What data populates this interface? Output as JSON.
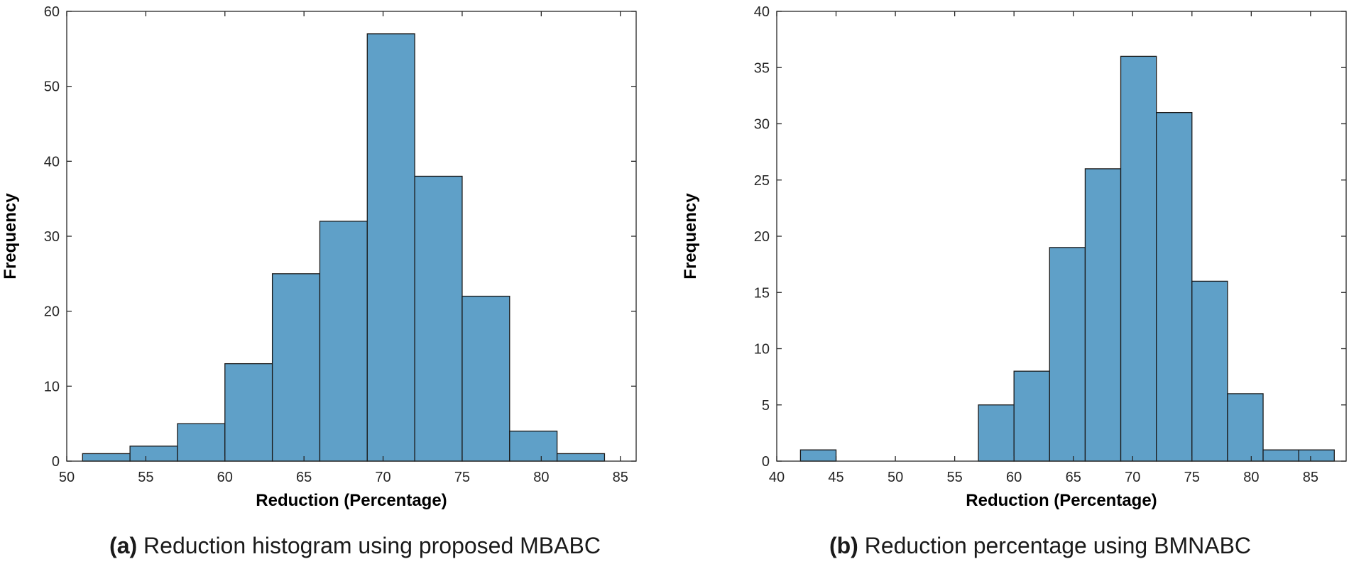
{
  "chart_data": [
    {
      "type": "bar",
      "subtype": "histogram",
      "caption_label": "(a)",
      "caption_text": "Reduction histogram using proposed MBABC",
      "xlabel": "Reduction (Percentage)",
      "ylabel": "Frequency",
      "xlim": [
        50,
        86
      ],
      "ylim": [
        0,
        60
      ],
      "xticks": [
        50,
        55,
        60,
        65,
        70,
        75,
        80,
        85
      ],
      "yticks": [
        0,
        10,
        20,
        30,
        40,
        50,
        60
      ],
      "bin_edges": [
        51,
        54,
        57,
        60,
        63,
        66,
        69,
        72,
        75,
        78,
        81,
        84
      ],
      "values": [
        1,
        2,
        5,
        13,
        25,
        32,
        57,
        38,
        22,
        4,
        1
      ],
      "color": "#5fa0c8",
      "grid": false
    },
    {
      "type": "bar",
      "subtype": "histogram",
      "caption_label": "(b)",
      "caption_text": "Reduction percentage using BMNABC",
      "xlabel": "Reduction (Percentage)",
      "ylabel": "Frequency",
      "xlim": [
        40,
        88
      ],
      "ylim": [
        0,
        40
      ],
      "xticks": [
        40,
        45,
        50,
        55,
        60,
        65,
        70,
        75,
        80,
        85
      ],
      "yticks": [
        0,
        5,
        10,
        15,
        20,
        25,
        30,
        35,
        40
      ],
      "bin_edges": [
        42,
        45,
        48,
        51,
        54,
        57,
        60,
        63,
        66,
        69,
        72,
        75,
        78,
        81,
        84,
        87
      ],
      "values": [
        1,
        0,
        0,
        0,
        0,
        5,
        8,
        19,
        26,
        36,
        31,
        16,
        6,
        1,
        1
      ],
      "color": "#5fa0c8",
      "grid": false
    }
  ]
}
